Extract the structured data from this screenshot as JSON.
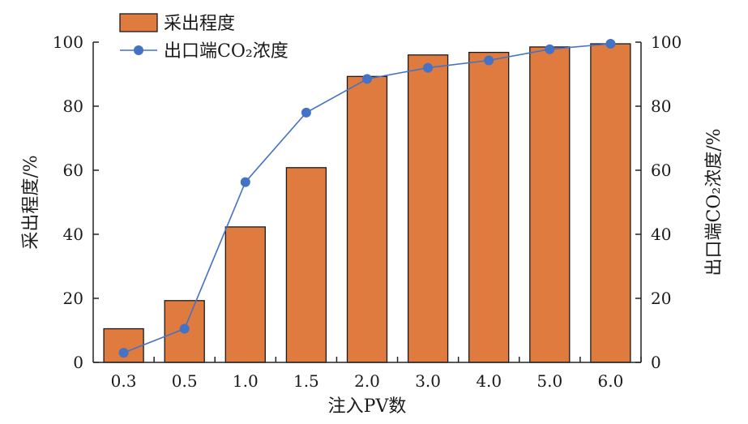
{
  "chart_data": {
    "type": "bar+line",
    "categories": [
      "0.3",
      "0.5",
      "1.0",
      "1.5",
      "2.0",
      "3.0",
      "4.0",
      "5.0",
      "6.0"
    ],
    "xlabel": "注入PV数",
    "ylabel_left": "采出程度/%",
    "ylabel_right": "出口端CO₂浓度/%",
    "ylim_left": [
      0,
      100
    ],
    "ylim_right": [
      0,
      100
    ],
    "yticks": [
      "0",
      "20",
      "40",
      "60",
      "80",
      "100"
    ],
    "grid": false,
    "legend_position": "top-left",
    "series": [
      {
        "name": "采出程度",
        "type": "bar",
        "axis": "left",
        "color": "#E07B3F",
        "values": [
          10.5,
          19.3,
          42.3,
          60.8,
          89.3,
          96.0,
          96.8,
          98.5,
          99.5
        ]
      },
      {
        "name": "出口端CO₂浓度",
        "type": "line",
        "axis": "right",
        "color": "#4472C4",
        "values": [
          3.0,
          10.5,
          56.3,
          78.0,
          88.5,
          92.0,
          94.3,
          97.8,
          99.5
        ]
      }
    ]
  }
}
